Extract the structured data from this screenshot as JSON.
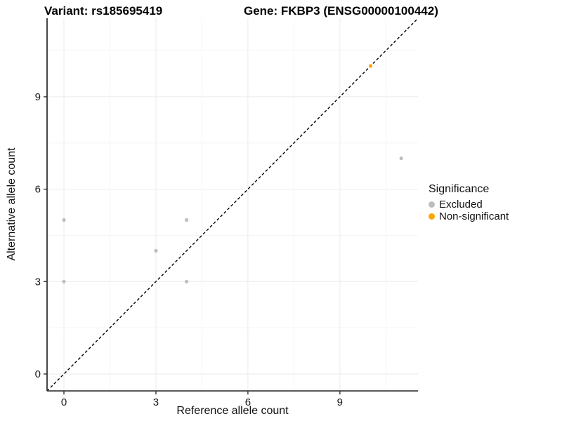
{
  "header": {
    "variant_title": "Variant: rs185695419",
    "gene_title": "Gene: FKBP3 (ENSG00000100442)"
  },
  "chart_data": {
    "type": "scatter",
    "title": "Variant: rs185695419 / Gene: FKBP3 (ENSG00000100442)",
    "xlabel": "Reference allele count",
    "ylabel": "Alternative allele count",
    "xlim": [
      -0.55,
      11.55
    ],
    "ylim": [
      -0.55,
      11.55
    ],
    "x_ticks": [
      0,
      3,
      6,
      9
    ],
    "y_ticks": [
      0,
      3,
      6,
      9
    ],
    "x_minor_gridlines": [
      1.5,
      4.5,
      7.5,
      10.5
    ],
    "y_minor_gridlines": [
      1.5,
      4.5,
      7.5,
      10.5
    ],
    "grid": true,
    "legend_title": "Significance",
    "legend_position": "right",
    "reference_line": {
      "kind": "identity y=x",
      "style": "dashed",
      "color": "#000000"
    },
    "series": [
      {
        "name": "Excluded",
        "color": "#BEBEBE",
        "points": [
          [
            0,
            3
          ],
          [
            0,
            5
          ],
          [
            3,
            4
          ],
          [
            4,
            3
          ],
          [
            4,
            5
          ],
          [
            11,
            7
          ]
        ]
      },
      {
        "name": "Non-significant",
        "color": "#FFA500",
        "points": [
          [
            10,
            10
          ]
        ]
      }
    ]
  },
  "style_colors": {
    "major_grid": "#EBEBEB",
    "minor_grid": "#F5F5F5",
    "axis_line": "#333333",
    "tick_label": "#1A1A1A"
  }
}
